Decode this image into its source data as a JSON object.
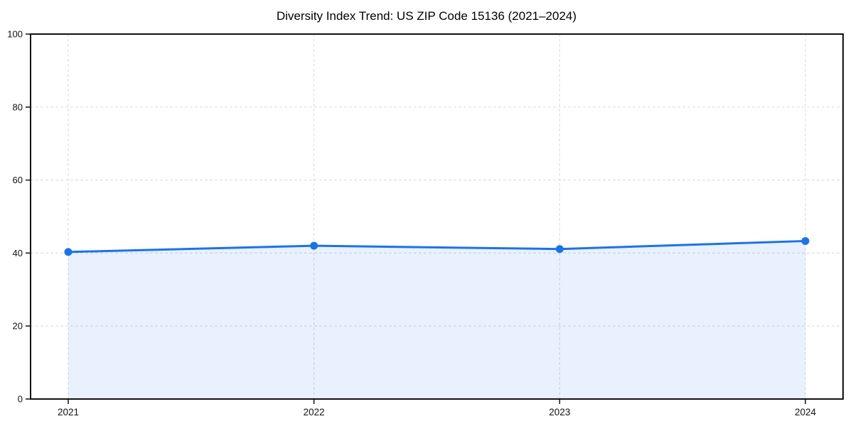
{
  "chart_data": {
    "type": "area",
    "title": "Diversity Index Trend: US ZIP Code 15136 (2021–2024)",
    "x": [
      2021,
      2022,
      2023,
      2024
    ],
    "xticks": [
      "2021",
      "2022",
      "2023",
      "2024"
    ],
    "series": [
      {
        "name": "Diversity Index",
        "values": [
          40.3,
          42.0,
          41.1,
          43.3
        ]
      }
    ],
    "xlabel": "",
    "ylabel": "",
    "ylim": [
      0,
      100
    ],
    "yticks": [
      0,
      20,
      40,
      60,
      80,
      100
    ],
    "grid": true,
    "grid_style": "dashed",
    "legend_position": "none",
    "colors": {
      "line": "#1a73e8",
      "fill": "#1a73e8",
      "fill_opacity": 0.1,
      "grid": "#e0e0e0",
      "spine": "#111111",
      "text": "#111111",
      "background": "#ffffff"
    }
  }
}
